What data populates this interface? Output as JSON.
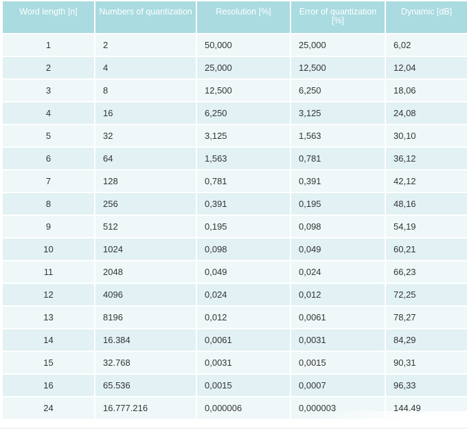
{
  "table": {
    "headers": [
      "Word length [n]",
      "Numbers of quantization",
      "Resolution  [%]",
      "Error of quantization [%]",
      "Dynamic [dB]"
    ],
    "rows": [
      [
        "1",
        "2",
        "50,000",
        "25,000",
        "6,02"
      ],
      [
        "2",
        "4",
        "25,000",
        "12,500",
        "12,04"
      ],
      [
        "3",
        "8",
        "12,500",
        "6,250",
        "18,06"
      ],
      [
        "4",
        "16",
        "6,250",
        "3,125",
        "24,08"
      ],
      [
        "5",
        "32",
        "3,125",
        "1,563",
        "30,10"
      ],
      [
        "6",
        "64",
        "1,563",
        "0,781",
        "36,12"
      ],
      [
        "7",
        "128",
        "0,781",
        "0,391",
        "42,12"
      ],
      [
        "8",
        "256",
        "0,391",
        "0,195",
        "48,16"
      ],
      [
        "9",
        "512",
        "0,195",
        "0,098",
        "54,19"
      ],
      [
        "10",
        "1024",
        "0,098",
        "0,049",
        "60,21"
      ],
      [
        "11",
        "2048",
        "0,049",
        "0,024",
        "66,23"
      ],
      [
        "12",
        "4096",
        "0,024",
        "0,012",
        "72,25"
      ],
      [
        "13",
        "8196",
        "0,012",
        "0,0061",
        "78,27"
      ],
      [
        "14",
        "16.384",
        "0,0061",
        "0,0031",
        "84,29"
      ],
      [
        "15",
        "32.768",
        "0,0031",
        "0,0015",
        "90,31"
      ],
      [
        "16",
        "65.536",
        "0,0015",
        "0,0007",
        "96,33"
      ],
      [
        "24",
        "16.777.216",
        "0,000006",
        "0,000003",
        "144,49"
      ]
    ]
  }
}
